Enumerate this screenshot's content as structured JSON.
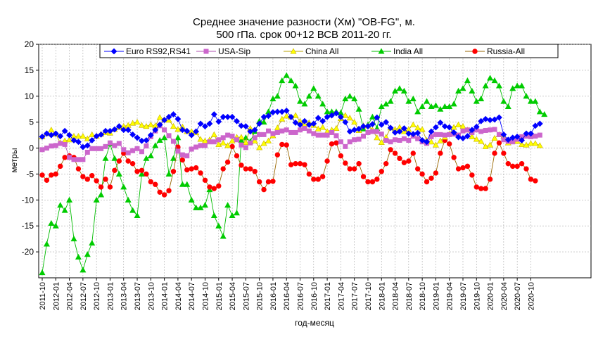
{
  "chart_data": {
    "type": "line",
    "title_lines": [
      "Среднее значение разности (Хм) \"OB-FG\", м.",
      "500 гПа. срок 00+12 ВСВ 2011-20 гг."
    ],
    "xlabel": "год-месяц",
    "ylabel": "метры",
    "ylim": [
      -25,
      20
    ],
    "yticks": [
      -20,
      -15,
      -10,
      -5,
      0,
      5,
      10,
      15,
      20
    ],
    "x_start": "2011-10",
    "x_tick_labels": [
      "2011-10",
      "2012-01",
      "2012-04",
      "2012-07",
      "2012-10",
      "2013-01",
      "2013-04",
      "2013-07",
      "2013-10",
      "2014-01",
      "2014-04",
      "2014-07",
      "2014-10",
      "2015-01",
      "2015-04",
      "2015-07",
      "2015-10",
      "2016-01",
      "2016-04",
      "2016-07",
      "2016-10",
      "2017-01",
      "2017-04",
      "2017-07",
      "2017-10",
      "2018-01",
      "2018-04",
      "2018-07",
      "2018-10",
      "2019-01",
      "2019-04",
      "2019-07",
      "2019-10",
      "2020-01",
      "2020-04",
      "2020-07",
      "2020-10"
    ],
    "grid": true,
    "legend_position": "top",
    "series": [
      {
        "name": "Euro RS92,RS41",
        "color": "#0000ff",
        "marker": "diamond",
        "values": [
          2.2,
          2.8,
          2.5,
          2.8,
          2.3,
          3.3,
          2.5,
          1.5,
          1.2,
          0.2,
          0.5,
          1.5,
          2.3,
          2.6,
          3.3,
          3.3,
          3.6,
          4.2,
          3.5,
          3.5,
          2.6,
          2.0,
          1.4,
          1.5,
          2.5,
          3.5,
          4.5,
          5.4,
          6.0,
          6.5,
          5.6,
          3.5,
          3.3,
          2.5,
          3.2,
          4.7,
          4.2,
          4.7,
          6.5,
          5.1,
          6.0,
          6.0,
          6.0,
          5.2,
          4.3,
          4.2,
          3.2,
          3.5,
          4.7,
          6.0,
          6.2,
          6.9,
          7.0,
          7.0,
          7.2,
          6.0,
          4.9,
          4.5,
          5.2,
          4.5,
          4.7,
          5.8,
          5.2,
          6.0,
          6.3,
          6.7,
          6.0,
          5.0,
          3.2,
          3.5,
          3.7,
          4.2,
          4.2,
          4.6,
          5.9,
          4.5,
          5.0,
          3.9,
          3.0,
          3.2,
          3.8,
          2.8,
          2.7,
          2.9,
          1.5,
          1.2,
          3.2,
          4.0,
          4.9,
          4.2,
          4.0,
          3.0,
          2.1,
          1.9,
          2.3,
          3.5,
          4.1,
          5.2,
          5.6,
          5.4,
          5.5,
          5.9,
          2.6,
          1.6,
          2.0,
          2.2,
          1.5,
          2.8,
          2.8,
          4.3,
          4.7
        ]
      },
      {
        "name": "USA-Sip",
        "color": "#cc66cc",
        "marker": "square",
        "values": [
          -0.3,
          0.0,
          0.4,
          0.5,
          0.9,
          0.7,
          -1.8,
          -2.2,
          -2.2,
          -2.2,
          -0.8,
          -0.1,
          -0.1,
          -0.1,
          0.3,
          1.0,
          0.5,
          0.9,
          -0.3,
          -0.9,
          -0.5,
          -0.1,
          -0.7,
          0.4,
          2.2,
          3.3,
          4.3,
          3.5,
          2.4,
          1.3,
          -0.6,
          -1.3,
          -1.5,
          -0.2,
          0.2,
          0.5,
          0.5,
          1.2,
          1.2,
          1.6,
          2.0,
          2.5,
          2.3,
          1.6,
          0.6,
          0.1,
          1.0,
          2.0,
          2.6,
          2.6,
          3.3,
          2.8,
          3.0,
          3.3,
          3.5,
          3.0,
          3.0,
          3.5,
          3.8,
          3.3,
          2.8,
          2.5,
          2.5,
          2.5,
          3.0,
          2.4,
          1.2,
          0.3,
          1.2,
          1.6,
          1.7,
          2.3,
          3.0,
          3.2,
          3.2,
          2.7,
          1.5,
          1.2,
          1.6,
          1.5,
          1.8,
          1.5,
          2.3,
          1.8,
          1.2,
          0.9,
          2.2,
          2.6,
          2.6,
          2.5,
          2.6,
          2.7,
          2.5,
          3.3,
          3.5,
          3.0,
          3.5,
          3.2,
          3.4,
          3.5,
          3.6,
          2.6,
          1.6,
          1.3,
          1.2,
          1.7,
          2.2,
          2.3,
          2.2,
          2.3,
          2.5
        ]
      },
      {
        "name": "China All",
        "color": "#ffff00",
        "marker": "triangle",
        "values": [
          2.2,
          2.8,
          3.5,
          2.7,
          1.0,
          1.4,
          1.6,
          2.3,
          2.3,
          2.3,
          1.8,
          2.6,
          2.3,
          2.7,
          3.0,
          2.9,
          3.6,
          4.0,
          4.2,
          4.4,
          4.8,
          5.0,
          4.4,
          4.2,
          4.5,
          4.3,
          5.9,
          5.5,
          5.4,
          4.2,
          3.6,
          4.1,
          3.2,
          3.2,
          3.0,
          1.7,
          1.4,
          1.6,
          2.6,
          0.7,
          1.0,
          0.5,
          1.4,
          2.1,
          2.1,
          1.1,
          3.8,
          1.4,
          0.1,
          0.9,
          1.4,
          2.4,
          3.9,
          5.6,
          6.2,
          6.0,
          6.3,
          5.2,
          4.5,
          4.9,
          4.4,
          3.7,
          4.0,
          3.2,
          3.5,
          3.8,
          5.7,
          6.3,
          5.8,
          5.0,
          3.4,
          4.3,
          4.3,
          3.5,
          2.0,
          1.1,
          2.1,
          3.9,
          3.6,
          4.0,
          3.2,
          3.6,
          4.5,
          3.9,
          3.6,
          1.5,
          1.2,
          0.6,
          1.4,
          2.1,
          2.7,
          4.0,
          4.5,
          4.2,
          3.5,
          2.2,
          1.7,
          1.3,
          0.3,
          0.6,
          1.9,
          2.6,
          2.3,
          1.0,
          1.3,
          1.3,
          0.7,
          0.6,
          0.9,
          0.9,
          0.5
        ]
      },
      {
        "name": "India All",
        "color": "#00cc00",
        "marker": "triangle",
        "values": [
          -24.0,
          -18.5,
          -14.5,
          -15.0,
          -11.0,
          -12.0,
          -10.0,
          -17.5,
          -21.0,
          -23.5,
          -20.5,
          -18.3,
          -10.0,
          -9.0,
          -2.0,
          0.8,
          -2.0,
          -5.0,
          -7.5,
          -10.0,
          -12.0,
          -13.0,
          -5.0,
          -2.0,
          -1.5,
          0.5,
          1.5,
          2.0,
          -5.0,
          -2.0,
          2.0,
          -7.0,
          -7.0,
          -10.0,
          -11.5,
          -11.5,
          -11.0,
          -8.0,
          -13.0,
          -15.0,
          -17.0,
          -11.0,
          -13.0,
          -12.5,
          1.5,
          2.0,
          1.3,
          3.2,
          5.2,
          5.0,
          7.0,
          9.5,
          10.0,
          13.0,
          14.0,
          13.0,
          12.0,
          9.0,
          8.5,
          10.0,
          11.5,
          10.0,
          8.5,
          7.0,
          7.0,
          7.0,
          6.8,
          9.5,
          10.0,
          9.5,
          7.5,
          3.7,
          4.5,
          6.0,
          3.8,
          8.0,
          8.5,
          9.0,
          11.0,
          11.5,
          11.0,
          9.0,
          9.5,
          7.0,
          8.0,
          9.0,
          8.0,
          8.2,
          7.5,
          8.0,
          8.0,
          8.5,
          11.0,
          11.5,
          13.0,
          11.0,
          9.0,
          9.5,
          12.0,
          13.5,
          13.0,
          12.0,
          9.0,
          8.0,
          11.5,
          12.0,
          12.0,
          10.0,
          9.0,
          9.0,
          7.0,
          6.5
        ]
      },
      {
        "name": "Russia-All",
        "color": "#ff0000",
        "marker": "circle",
        "values": [
          -5.2,
          -6.2,
          -5.2,
          -5.0,
          -3.5,
          -1.8,
          -1.5,
          -1.8,
          -4.0,
          -5.5,
          -6.0,
          -5.3,
          -6.3,
          -7.5,
          -6.0,
          -7.5,
          -4.3,
          -2.5,
          -1.0,
          -2.5,
          -3.0,
          -4.5,
          -4.3,
          -5.0,
          -6.5,
          -7.0,
          -8.5,
          -9.0,
          -8.2,
          -4.5,
          0.2,
          -2.3,
          -4.2,
          -4.0,
          -3.8,
          -4.8,
          -6.2,
          -7.5,
          -7.8,
          -7.3,
          -4.0,
          -2.7,
          0.3,
          -1.5,
          -3.3,
          -4.0,
          -4.0,
          -4.5,
          -6.5,
          -8.0,
          -6.5,
          -6.4,
          -1.3,
          0.7,
          0.6,
          -3.2,
          -3.0,
          -3.0,
          -3.2,
          -5.0,
          -6.0,
          -6.0,
          -5.5,
          -2.5,
          0.8,
          1.0,
          -1.5,
          -2.9,
          -4.0,
          -4.0,
          -3.0,
          -5.5,
          -6.5,
          -6.5,
          -6.0,
          -4.5,
          -3.0,
          -0.3,
          -1.0,
          -2.0,
          -2.8,
          -2.5,
          -1.0,
          -4.0,
          -5.0,
          -6.5,
          -5.8,
          -4.8,
          -1.0,
          1.5,
          0.8,
          -1.8,
          -4.0,
          -3.8,
          -3.5,
          -5.2,
          -7.5,
          -7.8,
          -7.8,
          -6.0,
          -1.0,
          1.0,
          -1.0,
          -3.0,
          -3.5,
          -3.5,
          -3.0,
          -4.0,
          -6.0,
          -6.3
        ]
      }
    ]
  }
}
